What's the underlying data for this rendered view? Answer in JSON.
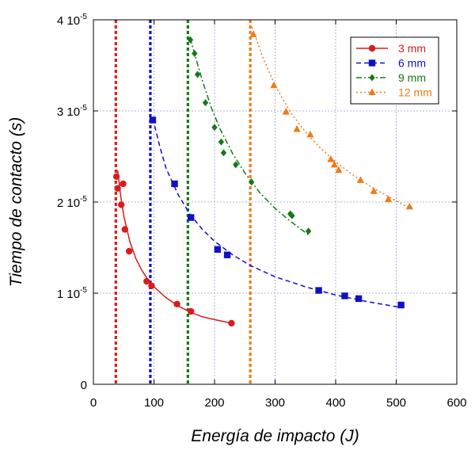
{
  "chart_data": {
    "type": "scatter",
    "title": "",
    "xlabel": "Energía de impacto (J)",
    "ylabel": "Tiempo de contacto (s)",
    "xlim": [
      0,
      600
    ],
    "ylim": [
      0,
      4e-05
    ],
    "x_ticks": [
      0,
      100,
      200,
      300,
      400,
      500,
      600
    ],
    "x_tick_labels": [
      "0",
      "100",
      "200",
      "300",
      "400",
      "500",
      "600"
    ],
    "y_ticks": [
      0,
      1e-05,
      2e-05,
      3e-05,
      4e-05
    ],
    "y_tick_labels": [
      {
        "base": "0",
        "exp": ""
      },
      {
        "base": "1 10",
        "exp": "-5"
      },
      {
        "base": "2 10",
        "exp": "-5"
      },
      {
        "base": "3 10",
        "exp": "-5"
      },
      {
        "base": "4 10",
        "exp": "-5"
      }
    ],
    "grid": true,
    "legend_position": "top-right",
    "series": [
      {
        "name": "3 mm",
        "color": "#d91c1c",
        "marker": "circle",
        "line": "solid",
        "threshold_x": 37,
        "points": [
          [
            38,
            2.28e-05
          ],
          [
            40,
            2.15e-05
          ],
          [
            46,
            1.97e-05
          ],
          [
            49,
            2.2e-05
          ],
          [
            52,
            1.7e-05
          ],
          [
            59,
            1.46e-05
          ],
          [
            88,
            1.13e-05
          ],
          [
            96,
            1.08e-05
          ],
          [
            138,
            8.8e-06
          ],
          [
            161,
            8e-06
          ],
          [
            228,
            6.7e-06
          ]
        ],
        "fit": [
          [
            40,
            2.35e-05
          ],
          [
            45,
            2.07e-05
          ],
          [
            50,
            1.85e-05
          ],
          [
            60,
            1.57e-05
          ],
          [
            70,
            1.38e-05
          ],
          [
            80,
            1.25e-05
          ],
          [
            90,
            1.15e-05
          ],
          [
            100,
            1.07e-05
          ],
          [
            120,
            9.5e-06
          ],
          [
            140,
            8.6e-06
          ],
          [
            160,
            7.9e-06
          ],
          [
            180,
            7.4e-06
          ],
          [
            200,
            7.1e-06
          ],
          [
            228,
            6.7e-06
          ]
        ]
      },
      {
        "name": "6 mm",
        "color": "#1010c8",
        "marker": "square",
        "line": "dashed",
        "threshold_x": 94,
        "points": [
          [
            98,
            2.9e-05
          ],
          [
            134,
            2.2e-05
          ],
          [
            161,
            1.83e-05
          ],
          [
            205,
            1.48e-05
          ],
          [
            221,
            1.42e-05
          ],
          [
            372,
            1.03e-05
          ],
          [
            415,
            9.7e-06
          ],
          [
            438,
            9.4e-06
          ],
          [
            508,
            8.7e-06
          ]
        ],
        "fit": [
          [
            98,
            2.92e-05
          ],
          [
            110,
            2.6e-05
          ],
          [
            120,
            2.37e-05
          ],
          [
            140,
            2.08e-05
          ],
          [
            160,
            1.86e-05
          ],
          [
            180,
            1.7e-05
          ],
          [
            200,
            1.57e-05
          ],
          [
            230,
            1.42e-05
          ],
          [
            260,
            1.3e-05
          ],
          [
            300,
            1.18e-05
          ],
          [
            350,
            1.07e-05
          ],
          [
            400,
            9.8e-06
          ],
          [
            450,
            9.1e-06
          ],
          [
            510,
            8.4e-06
          ]
        ]
      },
      {
        "name": "9 mm",
        "color": "#157a15",
        "marker": "diamond",
        "line": "dash-dot",
        "threshold_x": 156,
        "points": [
          [
            160,
            3.78e-05
          ],
          [
            167,
            3.63e-05
          ],
          [
            172,
            3.4e-05
          ],
          [
            185,
            3.09e-05
          ],
          [
            200,
            2.82e-05
          ],
          [
            211,
            2.66e-05
          ],
          [
            215,
            2.54e-05
          ],
          [
            235,
            2.41e-05
          ],
          [
            261,
            2.22e-05
          ],
          [
            325,
            1.87e-05
          ],
          [
            328,
            1.85e-05
          ],
          [
            355,
            1.68e-05
          ]
        ],
        "fit": [
          [
            160,
            3.8e-05
          ],
          [
            170,
            3.56e-05
          ],
          [
            180,
            3.33e-05
          ],
          [
            195,
            3.03e-05
          ],
          [
            210,
            2.79e-05
          ],
          [
            230,
            2.53e-05
          ],
          [
            250,
            2.32e-05
          ],
          [
            275,
            2.1e-05
          ],
          [
            300,
            1.93e-05
          ],
          [
            325,
            1.79e-05
          ],
          [
            355,
            1.64e-05
          ]
        ]
      },
      {
        "name": "12 mm",
        "color": "#ee7a18",
        "marker": "triangle",
        "line": "dotted",
        "threshold_x": 259,
        "points": [
          [
            264,
            3.84e-05
          ],
          [
            298,
            3.28e-05
          ],
          [
            318,
            2.99e-05
          ],
          [
            336,
            2.8e-05
          ],
          [
            358,
            2.74e-05
          ],
          [
            392,
            2.47e-05
          ],
          [
            398,
            2.41e-05
          ],
          [
            405,
            2.35e-05
          ],
          [
            441,
            2.24e-05
          ],
          [
            463,
            2.12e-05
          ],
          [
            487,
            2.03e-05
          ],
          [
            522,
            1.95e-05
          ]
        ],
        "fit": [
          [
            262,
            3.92e-05
          ],
          [
            280,
            3.58e-05
          ],
          [
            300,
            3.28e-05
          ],
          [
            325,
            2.99e-05
          ],
          [
            350,
            2.77e-05
          ],
          [
            375,
            2.59e-05
          ],
          [
            400,
            2.44e-05
          ],
          [
            430,
            2.29e-05
          ],
          [
            460,
            2.16e-05
          ],
          [
            490,
            2.05e-05
          ],
          [
            522,
            1.93e-05
          ]
        ]
      }
    ]
  }
}
